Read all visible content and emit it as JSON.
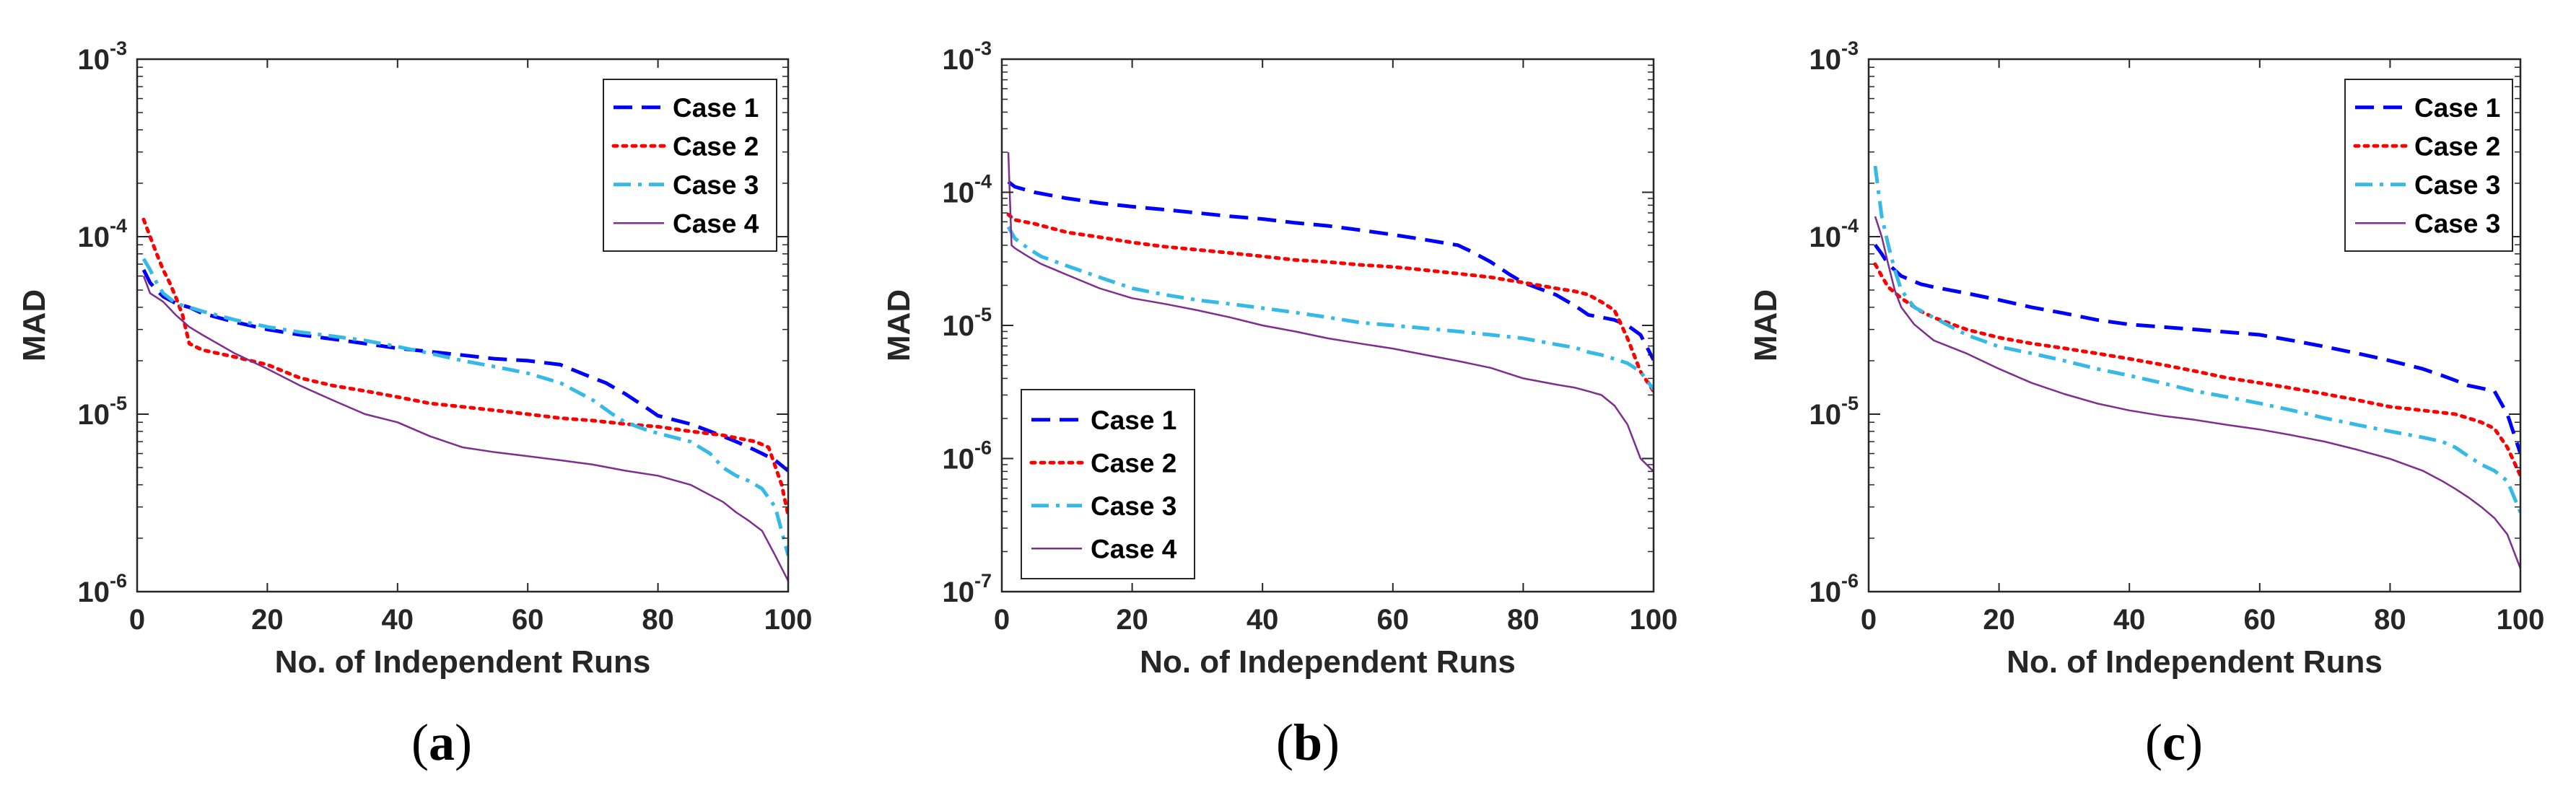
{
  "chart_data": [
    {
      "type": "line",
      "panel_label": "a",
      "xlabel": "No. of Independent Runs",
      "ylabel": "MAD",
      "xlim": [
        0,
        100
      ],
      "ylim": [
        1e-06,
        0.001
      ],
      "yscale": "log",
      "xticks": [
        0,
        20,
        40,
        60,
        80,
        100
      ],
      "ytick_exponents": [
        -6,
        -5,
        -4,
        -3
      ],
      "legend_position": "top-right",
      "series": [
        {
          "name": "Case 1",
          "color": "#0000ff",
          "style": "dashed",
          "x": [
            1,
            2,
            3,
            4,
            6,
            8,
            10,
            15,
            20,
            25,
            30,
            35,
            40,
            45,
            50,
            55,
            60,
            65,
            70,
            72,
            75,
            78,
            80,
            85,
            88,
            90,
            92,
            94,
            96,
            98,
            100
          ],
          "y": [
            6.5e-05,
            5.5e-05,
            5e-05,
            4.6e-05,
            4.2e-05,
            4e-05,
            3.7e-05,
            3.3e-05,
            3e-05,
            2.8e-05,
            2.65e-05,
            2.5e-05,
            2.35e-05,
            2.25e-05,
            2.15e-05,
            2.05e-05,
            2e-05,
            1.9e-05,
            1.6e-05,
            1.5e-05,
            1.3e-05,
            1.1e-05,
            9.8e-06,
            8.8e-06,
            8e-06,
            7.5e-06,
            7e-06,
            6.5e-06,
            6e-06,
            5.5e-06,
            4.8e-06
          ]
        },
        {
          "name": "Case 2",
          "color": "#ff0000",
          "style": "dotted",
          "x": [
            1,
            2,
            3,
            4,
            5,
            6,
            7,
            8,
            10,
            15,
            20,
            25,
            30,
            35,
            40,
            45,
            50,
            55,
            60,
            65,
            70,
            75,
            80,
            85,
            90,
            95,
            97,
            99,
            100
          ],
          "y": [
            0.000125,
            0.0001,
            8e-05,
            6.5e-05,
            5.5e-05,
            4.5e-05,
            3.6e-05,
            2.5e-05,
            2.3e-05,
            2.1e-05,
            1.9e-05,
            1.6e-05,
            1.45e-05,
            1.35e-05,
            1.25e-05,
            1.15e-05,
            1.1e-05,
            1.05e-05,
            1e-05,
            9.5e-06,
            9.2e-06,
            8.8e-06,
            8.5e-06,
            8e-06,
            7.6e-06,
            7e-06,
            6.5e-06,
            4e-06,
            2.7e-06
          ]
        },
        {
          "name": "Case 3",
          "color": "#35b9e6",
          "style": "dashdot",
          "x": [
            1,
            2,
            3,
            4,
            6,
            8,
            10,
            15,
            20,
            25,
            30,
            35,
            40,
            45,
            50,
            55,
            60,
            65,
            70,
            73,
            75,
            78,
            80,
            85,
            88,
            90,
            92,
            94,
            96,
            98,
            100
          ],
          "y": [
            7.5e-05,
            6.5e-05,
            5.5e-05,
            4.8e-05,
            4.2e-05,
            4e-05,
            3.8e-05,
            3.4e-05,
            3.1e-05,
            2.9e-05,
            2.75e-05,
            2.6e-05,
            2.4e-05,
            2.2e-05,
            2e-05,
            1.85e-05,
            1.7e-05,
            1.5e-05,
            1.2e-05,
            1e-05,
            9e-06,
            8.2e-06,
            7.8e-06,
            7e-06,
            6e-06,
            5e-06,
            4.5e-06,
            4.2e-06,
            3.8e-06,
            3e-06,
            1.6e-06
          ]
        },
        {
          "name": "Case 4",
          "color": "#7e2f8e",
          "style": "solid",
          "x": [
            1,
            2,
            4,
            6,
            8,
            10,
            15,
            20,
            25,
            30,
            35,
            40,
            45,
            50,
            55,
            60,
            65,
            70,
            75,
            80,
            85,
            88,
            90,
            92,
            94,
            96,
            98,
            100
          ],
          "y": [
            6e-05,
            4.8e-05,
            4.3e-05,
            3.6e-05,
            3.1e-05,
            2.8e-05,
            2.2e-05,
            1.8e-05,
            1.45e-05,
            1.2e-05,
            1e-05,
            9e-06,
            7.5e-06,
            6.5e-06,
            6.1e-06,
            5.8e-06,
            5.5e-06,
            5.2e-06,
            4.8e-06,
            4.5e-06,
            4e-06,
            3.5e-06,
            3.2e-06,
            2.8e-06,
            2.5e-06,
            2.2e-06,
            1.6e-06,
            1.15e-06
          ]
        }
      ]
    },
    {
      "type": "line",
      "panel_label": "b",
      "xlabel": "No. of Independent Runs",
      "ylabel": "MAD",
      "xlim": [
        0,
        100
      ],
      "ylim": [
        1e-07,
        0.001
      ],
      "yscale": "log",
      "xticks": [
        0,
        20,
        40,
        60,
        80,
        100
      ],
      "ytick_exponents": [
        -7,
        -6,
        -5,
        -4,
        -3
      ],
      "legend_position": "bottom-left",
      "series": [
        {
          "name": "Case 1",
          "color": "#0000ff",
          "style": "dashed",
          "x": [
            1,
            2,
            5,
            10,
            15,
            20,
            25,
            30,
            35,
            40,
            45,
            50,
            55,
            60,
            65,
            70,
            72,
            75,
            78,
            80,
            85,
            88,
            90,
            92,
            94,
            96,
            98,
            100
          ],
          "y": [
            0.00012,
            0.00011,
            0.0001,
            9e-05,
            8.3e-05,
            7.8e-05,
            7.4e-05,
            7e-05,
            6.6e-05,
            6.3e-05,
            5.9e-05,
            5.6e-05,
            5.2e-05,
            4.8e-05,
            4.4e-05,
            4e-05,
            3.6e-05,
            3e-05,
            2.4e-05,
            2.1e-05,
            1.7e-05,
            1.4e-05,
            1.2e-05,
            1.15e-05,
            1.1e-05,
            1e-05,
            8.5e-06,
            5.5e-06
          ]
        },
        {
          "name": "Case 2",
          "color": "#ff0000",
          "style": "dotted",
          "x": [
            1,
            2,
            5,
            10,
            15,
            20,
            25,
            30,
            35,
            40,
            45,
            50,
            55,
            60,
            65,
            70,
            75,
            80,
            85,
            88,
            90,
            92,
            94,
            96,
            98,
            100
          ],
          "y": [
            6.8e-05,
            6.2e-05,
            5.8e-05,
            5e-05,
            4.6e-05,
            4.2e-05,
            3.9e-05,
            3.7e-05,
            3.5e-05,
            3.3e-05,
            3.1e-05,
            3e-05,
            2.85e-05,
            2.75e-05,
            2.6e-05,
            2.45e-05,
            2.3e-05,
            2.1e-05,
            1.9e-05,
            1.8e-05,
            1.7e-05,
            1.5e-05,
            1.3e-05,
            8e-06,
            4.5e-06,
            3.2e-06
          ]
        },
        {
          "name": "Case 3",
          "color": "#35b9e6",
          "style": "dashdot",
          "x": [
            1,
            2,
            4,
            6,
            10,
            15,
            20,
            25,
            30,
            35,
            40,
            45,
            50,
            55,
            60,
            65,
            70,
            75,
            80,
            85,
            88,
            90,
            92,
            94,
            96,
            98,
            100
          ],
          "y": [
            5.5e-05,
            4.5e-05,
            3.8e-05,
            3.3e-05,
            2.8e-05,
            2.3e-05,
            1.9e-05,
            1.7e-05,
            1.55e-05,
            1.45e-05,
            1.35e-05,
            1.25e-05,
            1.15e-05,
            1.05e-05,
            1e-05,
            9.5e-06,
            9e-06,
            8.5e-06,
            8e-06,
            7.2e-06,
            6.8e-06,
            6.3e-06,
            6e-06,
            5.6e-06,
            5.2e-06,
            4.5e-06,
            3.3e-06
          ]
        },
        {
          "name": "Case 4",
          "color": "#7e2f8e",
          "style": "solid",
          "x": [
            1,
            1.5,
            2,
            4,
            6,
            10,
            15,
            20,
            25,
            30,
            35,
            40,
            45,
            50,
            55,
            60,
            65,
            70,
            75,
            80,
            85,
            88,
            90,
            92,
            94,
            96,
            98,
            100
          ],
          "y": [
            0.0002,
            4e-05,
            3.8e-05,
            3.3e-05,
            2.9e-05,
            2.4e-05,
            1.9e-05,
            1.6e-05,
            1.45e-05,
            1.3e-05,
            1.15e-05,
            1e-05,
            9e-06,
            8e-06,
            7.3e-06,
            6.7e-06,
            6e-06,
            5.4e-06,
            4.8e-06,
            4e-06,
            3.6e-06,
            3.4e-06,
            3.2e-06,
            3e-06,
            2.5e-06,
            1.8e-06,
            1e-06,
            8e-07
          ]
        }
      ]
    },
    {
      "type": "line",
      "panel_label": "c",
      "xlabel": "No. of Independent Runs",
      "ylabel": "MAD",
      "xlim": [
        0,
        100
      ],
      "ylim": [
        1e-06,
        0.001
      ],
      "yscale": "log",
      "xticks": [
        0,
        20,
        40,
        60,
        80,
        100
      ],
      "ytick_exponents": [
        -6,
        -5,
        -4,
        -3
      ],
      "legend_position": "top-right",
      "series": [
        {
          "name": "Case 1",
          "color": "#0000ff",
          "style": "dashed",
          "x": [
            1,
            2,
            3,
            5,
            8,
            10,
            15,
            20,
            25,
            30,
            35,
            40,
            45,
            50,
            55,
            60,
            65,
            70,
            75,
            80,
            85,
            88,
            90,
            92,
            94,
            96,
            98,
            100
          ],
          "y": [
            9e-05,
            8e-05,
            7e-05,
            6e-05,
            5.4e-05,
            5.2e-05,
            4.8e-05,
            4.4e-05,
            4e-05,
            3.7e-05,
            3.4e-05,
            3.2e-05,
            3.1e-05,
            3e-05,
            2.9e-05,
            2.8e-05,
            2.6e-05,
            2.4e-05,
            2.2e-05,
            2e-05,
            1.8e-05,
            1.65e-05,
            1.55e-05,
            1.45e-05,
            1.4e-05,
            1.35e-05,
            1e-05,
            6e-06
          ]
        },
        {
          "name": "Case 2",
          "color": "#ff0000",
          "style": "dotted",
          "x": [
            1,
            2,
            3,
            5,
            8,
            10,
            15,
            20,
            25,
            30,
            35,
            40,
            45,
            50,
            55,
            60,
            65,
            70,
            75,
            80,
            85,
            90,
            92,
            94,
            96,
            98,
            100
          ],
          "y": [
            7e-05,
            6e-05,
            5.2e-05,
            4.5e-05,
            3.8e-05,
            3.5e-05,
            3e-05,
            2.7e-05,
            2.5e-05,
            2.35e-05,
            2.2e-05,
            2.05e-05,
            1.9e-05,
            1.75e-05,
            1.6e-05,
            1.5e-05,
            1.4e-05,
            1.3e-05,
            1.2e-05,
            1.1e-05,
            1.05e-05,
            1e-05,
            9.5e-06,
            9e-06,
            8.3e-06,
            6.5e-06,
            4.5e-06
          ]
        },
        {
          "name": "Case 3",
          "color": "#35b9e6",
          "style": "dashdot",
          "x": [
            1,
            2,
            3,
            4,
            5,
            7,
            10,
            15,
            20,
            25,
            30,
            35,
            40,
            45,
            50,
            55,
            60,
            65,
            70,
            75,
            80,
            85,
            88,
            90,
            92,
            94,
            96,
            98,
            100
          ],
          "y": [
            0.00025,
            0.00013,
            9e-05,
            6.5e-05,
            5e-05,
            4e-05,
            3.5e-05,
            2.8e-05,
            2.4e-05,
            2.2e-05,
            2e-05,
            1.8e-05,
            1.65e-05,
            1.5e-05,
            1.35e-05,
            1.25e-05,
            1.15e-05,
            1.05e-05,
            9.5e-06,
            8.7e-06,
            8e-06,
            7.4e-06,
            7e-06,
            6.5e-06,
            5.8e-06,
            5.2e-06,
            4.8e-06,
            4.2e-06,
            2.8e-06
          ]
        },
        {
          "name": "Case 3",
          "color": "#7e2f8e",
          "style": "solid",
          "x": [
            1,
            2,
            3,
            4,
            5,
            7,
            10,
            15,
            20,
            25,
            30,
            35,
            40,
            45,
            50,
            55,
            60,
            65,
            70,
            75,
            80,
            85,
            88,
            90,
            92,
            94,
            96,
            98,
            100
          ],
          "y": [
            0.00013,
            0.0001,
            7e-05,
            5e-05,
            4e-05,
            3.2e-05,
            2.6e-05,
            2.2e-05,
            1.8e-05,
            1.5e-05,
            1.3e-05,
            1.15e-05,
            1.05e-05,
            9.8e-06,
            9.3e-06,
            8.7e-06,
            8.2e-06,
            7.6e-06,
            7e-06,
            6.3e-06,
            5.6e-06,
            4.8e-06,
            4.2e-06,
            3.8e-06,
            3.4e-06,
            3e-06,
            2.6e-06,
            2.1e-06,
            1.35e-06
          ]
        }
      ]
    }
  ]
}
